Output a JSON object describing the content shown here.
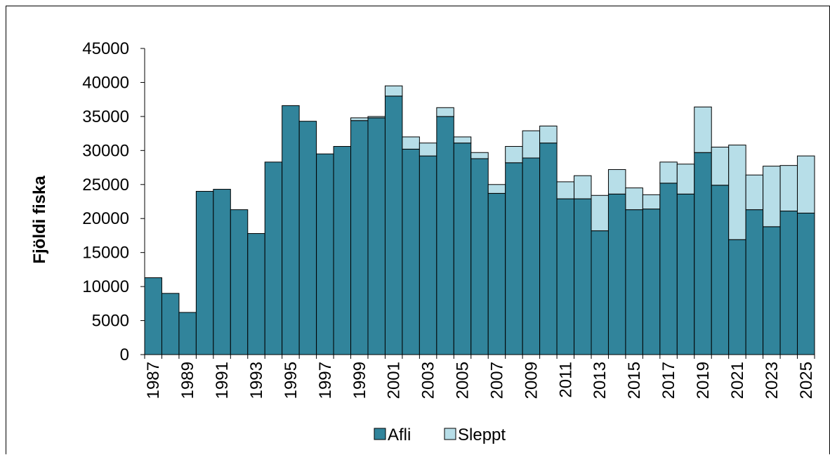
{
  "chart_data": {
    "type": "bar",
    "stacked": true,
    "ylabel": "Fjöldi fiska",
    "ylim": [
      0,
      45000
    ],
    "yticks": [
      "0",
      "5000",
      "10000",
      "15000",
      "20000",
      "25000",
      "30000",
      "35000",
      "40000",
      "45000"
    ],
    "x": [
      1987,
      1988,
      1989,
      1990,
      1991,
      1992,
      1993,
      1994,
      1995,
      1996,
      1997,
      1998,
      1999,
      2000,
      2001,
      2002,
      2003,
      2004,
      2005,
      2006,
      2007,
      2008,
      2009,
      2010,
      2011,
      2012,
      2013,
      2014,
      2015,
      2016,
      2017,
      2018,
      2019,
      2020,
      2021,
      2022,
      2023,
      2024,
      2025
    ],
    "xtick_labels": [
      "1987",
      "1989",
      "1991",
      "1993",
      "1995",
      "1997",
      "1999",
      "2001",
      "2003",
      "2005",
      "2007",
      "2009",
      "2011",
      "2013",
      "2015",
      "2017",
      "2019",
      "2021",
      "2023",
      "2025"
    ],
    "series": [
      {
        "name": "Afli",
        "color": "#31849b",
        "values": [
          11300,
          9000,
          6200,
          24000,
          24300,
          21300,
          17800,
          28300,
          36600,
          34300,
          29500,
          30600,
          34400,
          34800,
          38000,
          30200,
          29200,
          35000,
          31100,
          28800,
          23700,
          28200,
          28900,
          31100,
          22900,
          22900,
          18200,
          23600,
          21300,
          21400,
          25200,
          23600,
          29700,
          24900,
          16900,
          21300,
          18800,
          21100,
          20800
        ]
      },
      {
        "name": "Sleppt",
        "color": "#b7dee8",
        "values": [
          0,
          0,
          0,
          0,
          0,
          0,
          0,
          0,
          0,
          0,
          0,
          0,
          400,
          200,
          1500,
          1800,
          1900,
          1300,
          900,
          900,
          1300,
          2400,
          4000,
          2500,
          2500,
          3400,
          5200,
          3600,
          3200,
          2100,
          3100,
          4400,
          6700,
          5600,
          13900,
          5100,
          8900,
          6700,
          8400
        ]
      }
    ],
    "legend": {
      "position": "bottom",
      "entries": [
        "Afli",
        "Sleppt"
      ]
    },
    "grid": false
  }
}
